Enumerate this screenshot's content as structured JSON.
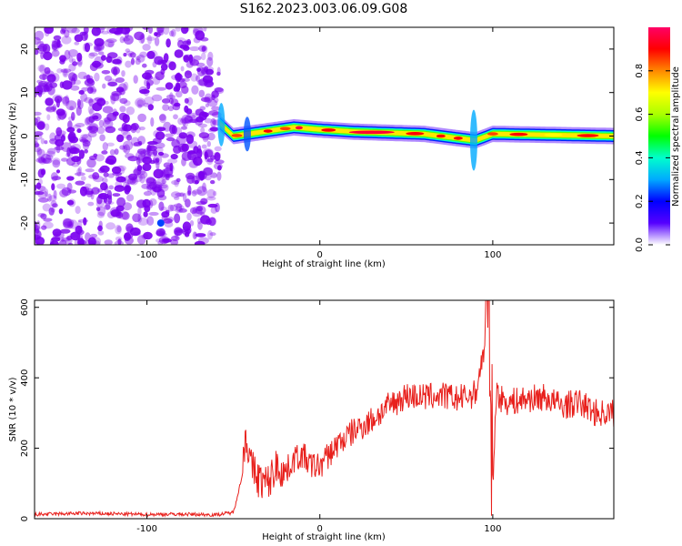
{
  "title": "S162.2023.003.06.09.G08",
  "colors": {
    "snr_line": "#e8201c",
    "noise_purple": "#7a00ee",
    "band_core": "#e02020"
  },
  "chart_data": [
    {
      "type": "heatmap",
      "name": "spectrogram",
      "xlabel": "Height of straight line (km)",
      "ylabel": "Frequency (Hz)",
      "xlim": [
        -165,
        170
      ],
      "ylim": [
        -25,
        25
      ],
      "x_ticks": [
        -100,
        0,
        100
      ],
      "x_tick_labels": [
        "-100",
        "0",
        "100"
      ],
      "y_ticks": [
        -20,
        -10,
        0,
        10,
        20
      ],
      "y_tick_labels": [
        "-20",
        "-10",
        "0",
        "10",
        "20"
      ],
      "noise_region_x": [
        -165,
        -58
      ],
      "signal_band": {
        "x_start": -58,
        "x_end": 170,
        "center_frequency": [
          [
            -58,
            3
          ],
          [
            -50,
            0
          ],
          [
            -15,
            2
          ],
          [
            0,
            1.5
          ],
          [
            20,
            1
          ],
          [
            60,
            0.5
          ],
          [
            90,
            -1
          ],
          [
            100,
            0.5
          ],
          [
            170,
            0
          ]
        ]
      },
      "colorbar": {
        "label": "Normalized spectral amplitude",
        "range": [
          0,
          1
        ],
        "ticks": [
          0.0,
          0.2,
          0.4,
          0.6,
          0.8
        ],
        "tick_labels": [
          "0.0",
          "0.2",
          "0.4",
          "0.6",
          "0.8"
        ],
        "colormap": [
          "#ffffff",
          "#5500ff",
          "#0000ff",
          "#00aaff",
          "#00ffcc",
          "#00ff00",
          "#aaff00",
          "#ffff00",
          "#ff8800",
          "#ff0000",
          "#ff0066"
        ]
      }
    },
    {
      "type": "line",
      "name": "snr",
      "xlabel": "Height of straight line (km)",
      "ylabel": "SNR (10 * v/v)",
      "xlim": [
        -165,
        170
      ],
      "ylim": [
        0,
        620
      ],
      "x_ticks": [
        -100,
        0,
        100
      ],
      "x_tick_labels": [
        "-100",
        "0",
        "100"
      ],
      "y_ticks": [
        0,
        200,
        400,
        600
      ],
      "y_tick_labels": [
        "0",
        "200",
        "400",
        "600"
      ],
      "series": [
        {
          "x": [
            -165,
            -140,
            -120,
            -100,
            -80,
            -60,
            -50,
            -45,
            -43,
            -40,
            -35,
            -30,
            -25,
            -20,
            -15,
            -10,
            -5,
            0,
            10,
            20,
            30,
            40,
            50,
            60,
            70,
            80,
            90,
            95,
            98,
            100,
            102,
            105,
            110,
            120,
            130,
            140,
            150,
            160,
            170
          ],
          "y": [
            12,
            15,
            14,
            12,
            13,
            11,
            18,
            120,
            250,
            150,
            110,
            100,
            150,
            130,
            170,
            180,
            150,
            150,
            210,
            250,
            280,
            320,
            350,
            345,
            350,
            340,
            355,
            480,
            580,
            80,
            360,
            340,
            330,
            340,
            345,
            320,
            330,
            300,
            300
          ]
        }
      ]
    }
  ]
}
